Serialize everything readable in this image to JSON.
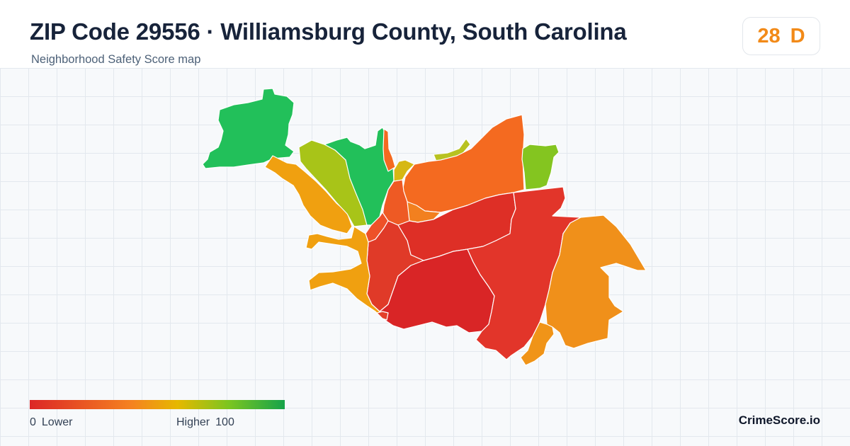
{
  "header": {
    "title": "ZIP Code 29556 · Williamsburg County, South Carolina",
    "subtitle": "Neighborhood Safety Score map"
  },
  "score_badge": {
    "score": "28",
    "grade": "D",
    "color": "#f28a18"
  },
  "legend": {
    "min_value": "0",
    "min_label": "Lower",
    "max_label": "Higher",
    "max_value": "100",
    "colors": [
      "#dc2626",
      "#f58220",
      "#e6b800",
      "#7cc520",
      "#16a34a"
    ]
  },
  "map": {
    "region_colors": {
      "low": "#dc2626",
      "low_mid": "#e8432a",
      "mid_low": "#f46a20",
      "mid": "#f0a010",
      "mid_high": "#a8c418",
      "high": "#22c05a"
    }
  },
  "brand": "CrimeScore.io"
}
